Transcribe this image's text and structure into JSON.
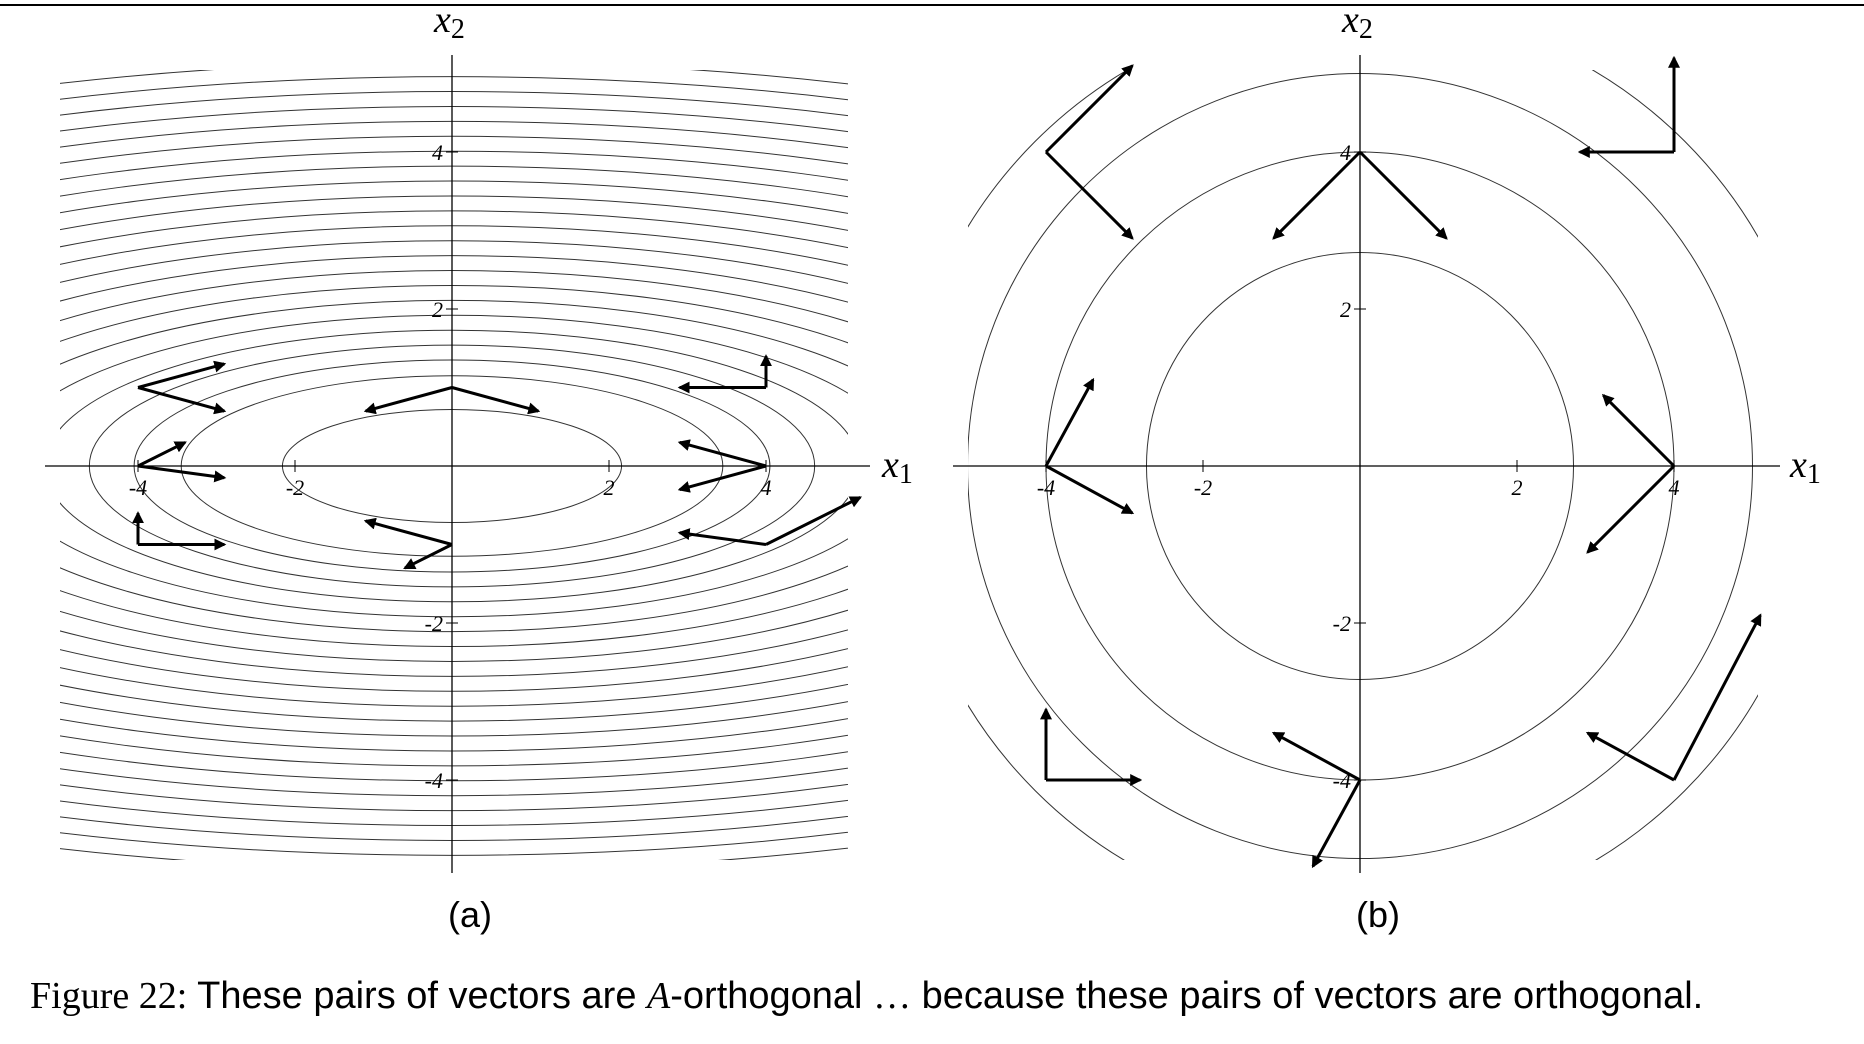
{
  "caption": {
    "label": "Figure 22:",
    "text_1": "These pairs of vectors are",
    "math_symbol": "A",
    "text_2": "-orthogonal",
    "ellipsis": "…",
    "text_3": "because these pairs of vectors are orthogonal."
  },
  "panels": [
    {
      "id": "a",
      "sublabel": "(a)",
      "axis_labels": {
        "x": "x",
        "x_sub": "1",
        "y": "x",
        "y_sub": "2"
      },
      "ticks": {
        "x": [
          "-4",
          "-2",
          "2",
          "4"
        ],
        "y": [
          "4",
          "2",
          "-2",
          "-4"
        ]
      },
      "contours": "ellipses with axis ratio 3:1, increasingly dense away from the center",
      "vector_pairs": [
        {
          "origin": [
            -4,
            1
          ],
          "v1": [
            1.1,
            0.3
          ],
          "v2": [
            1.1,
            -0.3
          ]
        },
        {
          "origin": [
            0,
            1
          ],
          "v1": [
            -1.1,
            -0.3
          ],
          "v2": [
            1.1,
            -0.3
          ]
        },
        {
          "origin": [
            4,
            1
          ],
          "v1": [
            -1.1,
            0
          ],
          "v2": [
            0,
            0.4
          ]
        },
        {
          "origin": [
            -4,
            0
          ],
          "v1": [
            0.6,
            0.3
          ],
          "v2": [
            1.1,
            -0.15
          ]
        },
        {
          "origin": [
            4,
            0
          ],
          "v1": [
            -1.1,
            0.3
          ],
          "v2": [
            -1.1,
            -0.3
          ]
        },
        {
          "origin": [
            -4,
            -1
          ],
          "v1": [
            0,
            0.4
          ],
          "v2": [
            1.1,
            0
          ]
        },
        {
          "origin": [
            0,
            -1
          ],
          "v1": [
            -1.1,
            0.3
          ],
          "v2": [
            -0.6,
            -0.3
          ]
        },
        {
          "origin": [
            4,
            -1
          ],
          "v1": [
            -1.1,
            0.15
          ],
          "v2": [
            1.2,
            0.6
          ]
        }
      ]
    },
    {
      "id": "b",
      "sublabel": "(b)",
      "axis_labels": {
        "x": "x",
        "x_sub": "1",
        "y": "x",
        "y_sub": "2"
      },
      "ticks": {
        "x": [
          "-4",
          "-2",
          "2",
          "4"
        ],
        "y": [
          "4",
          "2",
          "-2",
          "-4"
        ]
      },
      "contours": "concentric circles",
      "vector_pairs": [
        {
          "origin": [
            -4,
            4
          ],
          "v1": [
            1.1,
            1.1
          ],
          "v2": [
            1.1,
            -1.1
          ]
        },
        {
          "origin": [
            0,
            4
          ],
          "v1": [
            -1.1,
            -1.1
          ],
          "v2": [
            1.1,
            -1.1
          ]
        },
        {
          "origin": [
            4,
            4
          ],
          "v1": [
            -1.2,
            0
          ],
          "v2": [
            0,
            1.2
          ]
        },
        {
          "origin": [
            -4,
            0
          ],
          "v1": [
            0.6,
            1.1
          ],
          "v2": [
            1.1,
            -0.6
          ]
        },
        {
          "origin": [
            4,
            0
          ],
          "v1": [
            -0.9,
            0.9
          ],
          "v2": [
            -1.1,
            -1.1
          ]
        },
        {
          "origin": [
            -4,
            -4
          ],
          "v1": [
            0,
            0.9
          ],
          "v2": [
            1.2,
            0
          ]
        },
        {
          "origin": [
            0,
            -4
          ],
          "v1": [
            -1.1,
            0.6
          ],
          "v2": [
            -0.6,
            -1.1
          ]
        },
        {
          "origin": [
            4,
            -4
          ],
          "v1": [
            -1.1,
            0.6
          ],
          "v2": [
            1.1,
            2.1
          ]
        }
      ]
    }
  ]
}
